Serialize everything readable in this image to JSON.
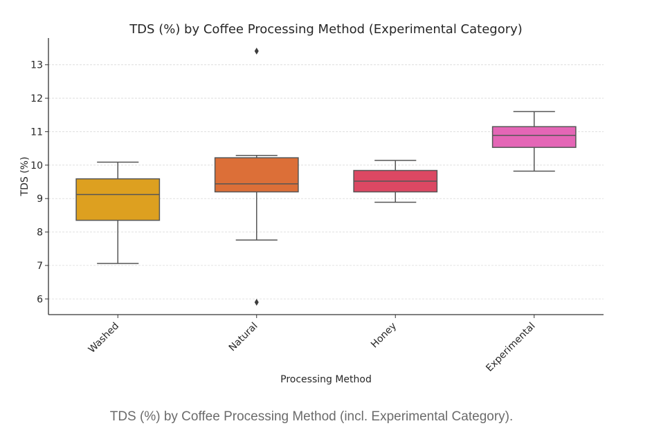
{
  "chart_data": {
    "type": "box",
    "title": "TDS (%) by Coffee Processing Method (Experimental Category)",
    "xlabel": "Processing Method",
    "ylabel": "TDS (%)",
    "ylim": [
      5.53,
      13.8
    ],
    "yticks": [
      6,
      7,
      8,
      9,
      10,
      11,
      12,
      13
    ],
    "grid": "y-dashed",
    "categories": [
      "Washed",
      "Natural",
      "Honey",
      "Experimental"
    ],
    "series": [
      {
        "name": "Washed",
        "color": "#DDA020",
        "whisker_low": 7.06,
        "q1": 8.35,
        "median": 9.12,
        "q3": 9.59,
        "whisker_high": 10.09,
        "outliers": []
      },
      {
        "name": "Natural",
        "color": "#DC6F38",
        "whisker_low": 7.76,
        "q1": 9.2,
        "median": 9.44,
        "q3": 10.22,
        "whisker_high": 10.29,
        "outliers": [
          13.41,
          5.9
        ]
      },
      {
        "name": "Honey",
        "color": "#DC4863",
        "whisker_low": 8.89,
        "q1": 9.2,
        "median": 9.52,
        "q3": 9.84,
        "whisker_high": 10.14,
        "outliers": []
      },
      {
        "name": "Experimental",
        "color": "#E466B6",
        "whisker_low": 9.82,
        "q1": 10.53,
        "median": 10.89,
        "q3": 11.15,
        "whisker_high": 11.6,
        "outliers": []
      }
    ]
  },
  "caption": "TDS (%) by Coffee Processing Method (incl. Experimental Category)."
}
